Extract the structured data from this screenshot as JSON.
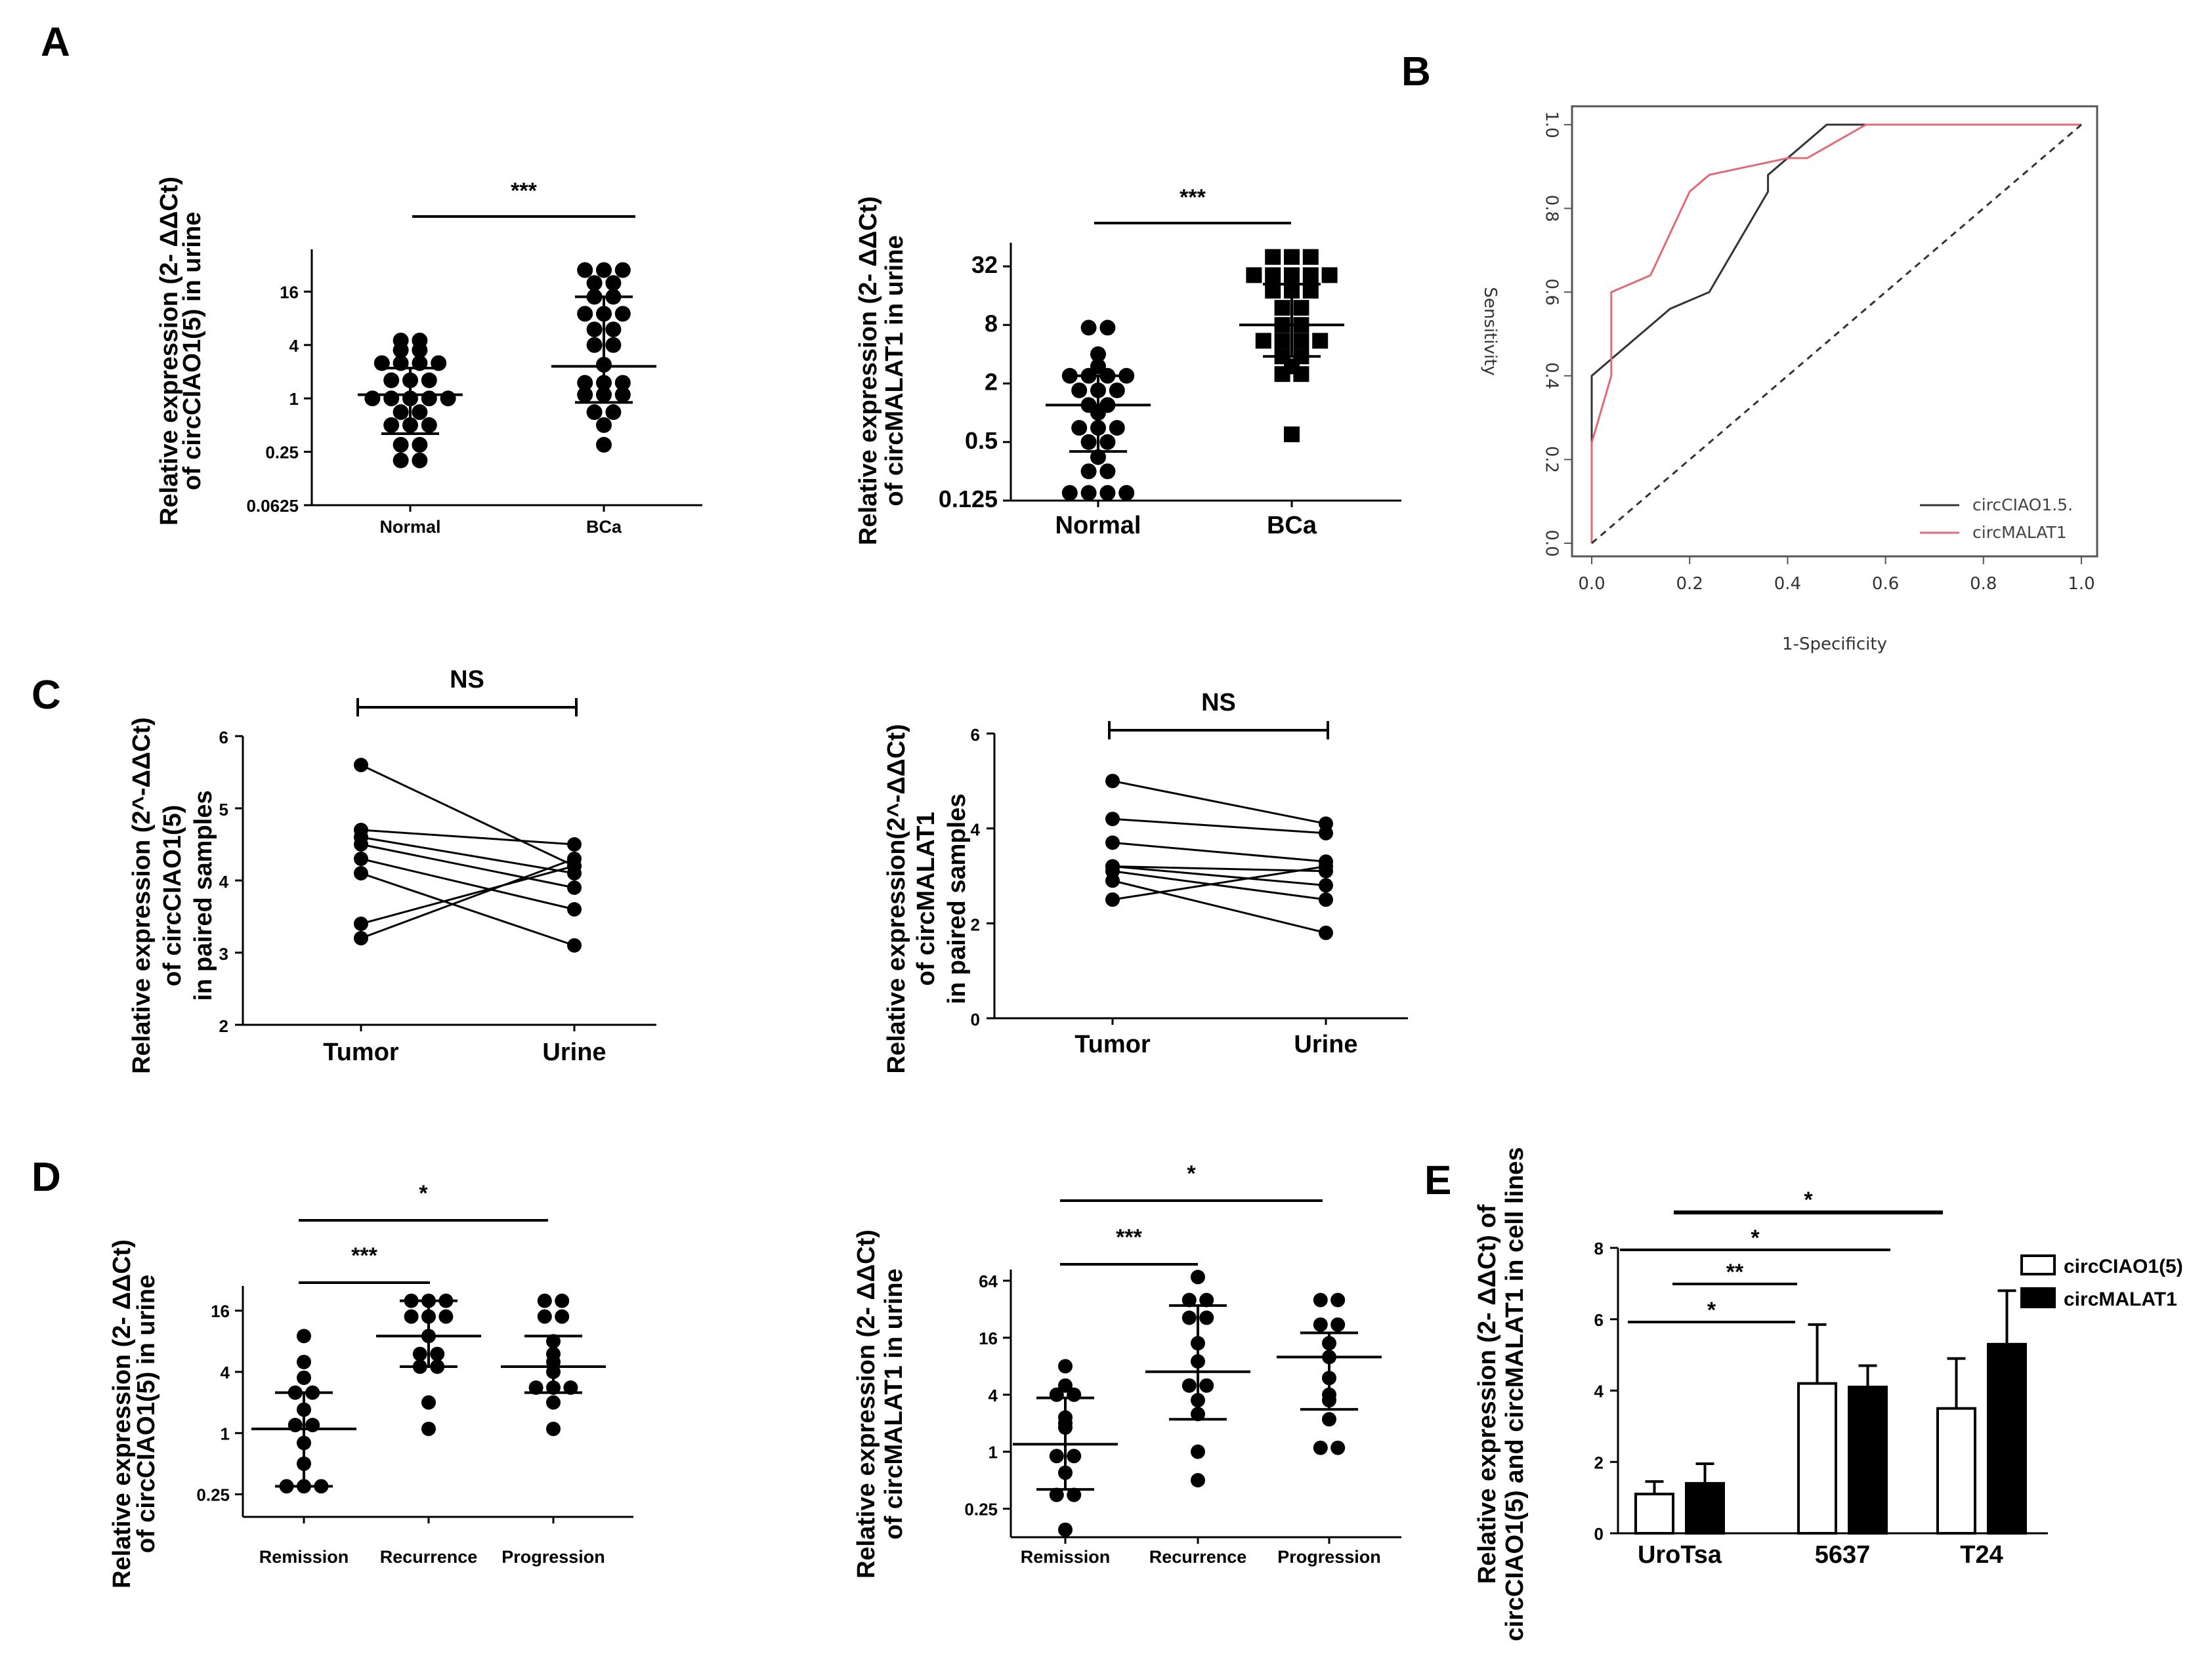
{
  "panels": {
    "A": "A",
    "B": "B",
    "C": "C",
    "D": "D",
    "E": "E"
  },
  "chart_data": [
    {
      "id": "A1",
      "type": "scatter",
      "scale": "log2",
      "ylabel_lines": [
        "Relative expression (2- ΔΔCt)",
        "of circCIAO1(5) in urine"
      ],
      "yticks": [
        0.0625,
        0.25,
        1,
        4,
        16
      ],
      "ytick_labels": [
        "0.0625",
        "0.25",
        "1",
        "4",
        "16"
      ],
      "categories": [
        "Normal",
        "BCa"
      ],
      "groups": [
        {
          "name": "Normal",
          "marker": "circle",
          "mean": 1.1,
          "low": 0.4,
          "high": 2.2,
          "values": [
            4.5,
            4.5,
            3.5,
            3.5,
            2.5,
            2.5,
            2.5,
            2.5,
            1.6,
            1.6,
            1.6,
            1.0,
            1.0,
            1.0,
            1.0,
            1.0,
            0.7,
            0.7,
            0.5,
            0.5,
            0.5,
            0.3,
            0.3,
            0.2,
            0.2
          ]
        },
        {
          "name": "BCa",
          "marker": "circle",
          "mean": 2.3,
          "low": 0.9,
          "high": 14,
          "values": [
            28,
            28,
            28,
            20,
            20,
            14,
            14,
            9,
            9,
            9,
            6,
            6,
            4,
            4,
            2.4,
            1.5,
            1.5,
            1.5,
            1.1,
            1.1,
            1.1,
            0.7,
            0.7,
            0.5,
            0.3
          ]
        }
      ],
      "comparisons": [
        {
          "from": 0,
          "to": 1,
          "label": "***"
        }
      ]
    },
    {
      "id": "A2",
      "type": "scatter",
      "scale": "log2",
      "ylabel_lines": [
        "Relative expression (2-  ΔΔCt)",
        "of circMALAT1 in urine"
      ],
      "yticks": [
        0.125,
        0.5,
        2,
        8,
        32
      ],
      "ytick_labels": [
        "0.125",
        "0.5",
        "2",
        "8",
        "32"
      ],
      "categories": [
        "Normal",
        "BCa"
      ],
      "groups": [
        {
          "name": "Normal",
          "marker": "circle",
          "mean": 1.2,
          "low": 0.4,
          "high": 2.4,
          "values": [
            7.5,
            7.5,
            4.0,
            3.0,
            2.4,
            2.4,
            2.4,
            2.4,
            1.7,
            1.7,
            1.7,
            1.2,
            1.2,
            1.0,
            0.7,
            0.7,
            0.7,
            0.5,
            0.5,
            0.35,
            0.25,
            0.25,
            0.15,
            0.15,
            0.15,
            0.15
          ]
        },
        {
          "name": "BCa",
          "marker": "square",
          "mean": 8.0,
          "low": 3.8,
          "high": 21,
          "values": [
            40,
            40,
            40,
            26,
            26,
            26,
            26,
            26,
            18,
            18,
            18,
            12,
            12,
            8,
            8,
            5.5,
            5.5,
            5.5,
            5.5,
            3.8,
            3.8,
            3.0,
            2.5,
            2.5,
            0.6
          ]
        }
      ],
      "comparisons": [
        {
          "from": 0,
          "to": 1,
          "label": "***"
        }
      ]
    },
    {
      "id": "B",
      "type": "line",
      "xlabel": "1-Specificity",
      "ylabel": "Sensitivity",
      "xlim": [
        0,
        1
      ],
      "ylim": [
        0,
        1
      ],
      "xticks": [
        0.0,
        0.2,
        0.4,
        0.6,
        0.8,
        1.0
      ],
      "xtick_labels": [
        "0.0",
        "0.2",
        "0.4",
        "0.6",
        "0.8",
        "1.0"
      ],
      "yticks": [
        0.0,
        0.2,
        0.4,
        0.6,
        0.8,
        1.0
      ],
      "ytick_labels": [
        "0.0",
        "0.2",
        "0.4",
        "0.6",
        "0.8",
        "1.0"
      ],
      "legend": "bottom-right",
      "series": [
        {
          "name": "circCIAO1.5.",
          "color": "#333333",
          "x": [
            0,
            0,
            0.04,
            0.16,
            0.24,
            0.36,
            0.36,
            0.48,
            1.0
          ],
          "y": [
            0,
            0.4,
            0.44,
            0.56,
            0.6,
            0.84,
            0.88,
            1.0,
            1.0
          ]
        },
        {
          "name": "circMALAT1",
          "color": "#e06a7a",
          "x": [
            0,
            0,
            0.04,
            0.04,
            0.12,
            0.2,
            0.24,
            0.4,
            0.44,
            0.56,
            1.0
          ],
          "y": [
            0,
            0.24,
            0.4,
            0.6,
            0.64,
            0.84,
            0.88,
            0.92,
            0.92,
            1.0,
            1.0
          ]
        },
        {
          "name": "",
          "color": "#333333",
          "dashed": true,
          "x": [
            0,
            1
          ],
          "y": [
            0,
            1
          ]
        }
      ]
    },
    {
      "id": "C1",
      "type": "line",
      "ylabel_lines": [
        "Relative expression (2^-ΔΔCt)",
        "of circCIAO1(5)",
        "in paired samples"
      ],
      "ylim": [
        2,
        6
      ],
      "yticks": [
        2,
        3,
        4,
        5,
        6
      ],
      "ytick_labels": [
        "2",
        "3",
        "4",
        "5",
        "6"
      ],
      "categories": [
        "Tumor",
        "Urine"
      ],
      "pairs": [
        [
          5.6,
          4.2
        ],
        [
          4.7,
          4.5
        ],
        [
          4.6,
          4.1
        ],
        [
          4.5,
          3.9
        ],
        [
          4.3,
          3.6
        ],
        [
          4.1,
          3.1
        ],
        [
          3.4,
          4.2
        ],
        [
          3.2,
          4.3
        ]
      ],
      "comparisons": [
        {
          "from": 0,
          "to": 1,
          "label": "NS"
        }
      ]
    },
    {
      "id": "C2",
      "type": "line",
      "ylabel_lines": [
        "Relative expression(2^-ΔΔCt)",
        "of circMALAT1",
        "in paired samples"
      ],
      "ylim": [
        0,
        6
      ],
      "yticks": [
        0,
        2,
        4,
        6
      ],
      "ytick_labels": [
        "0",
        "2",
        "4",
        "6"
      ],
      "categories": [
        "Tumor",
        "Urine"
      ],
      "pairs": [
        [
          5.0,
          4.1
        ],
        [
          4.2,
          3.9
        ],
        [
          3.7,
          3.3
        ],
        [
          3.2,
          2.8
        ],
        [
          3.2,
          3.1
        ],
        [
          3.1,
          2.5
        ],
        [
          2.9,
          1.8
        ],
        [
          2.5,
          3.2
        ]
      ],
      "comparisons": [
        {
          "from": 0,
          "to": 1,
          "label": "NS"
        }
      ]
    },
    {
      "id": "D1",
      "type": "scatter",
      "scale": "log2",
      "ylabel_lines": [
        "Relative expression (2-  ΔΔCt)",
        "of circCIAO1(5) in urine"
      ],
      "yticks": [
        0.25,
        1,
        4,
        16
      ],
      "ytick_labels": [
        "0.25",
        "1",
        "4",
        "16"
      ],
      "categories": [
        "Remission",
        "Recurrence",
        "Progression"
      ],
      "groups": [
        {
          "name": "Remission",
          "mean": 1.1,
          "low": 0.3,
          "high": 2.5,
          "values": [
            9,
            5,
            3.5,
            2.5,
            2.5,
            1.7,
            1.2,
            1.2,
            0.8,
            0.5,
            0.3,
            0.3,
            0.3
          ]
        },
        {
          "name": "Recurrence",
          "mean": 9,
          "low": 4.5,
          "high": 20,
          "values": [
            20,
            20,
            20,
            14,
            14,
            14,
            9,
            6,
            6,
            4.5,
            4.5,
            2,
            1.1
          ]
        },
        {
          "name": "Progression",
          "mean": 4.5,
          "low": 2.5,
          "high": 9,
          "values": [
            20,
            20,
            14,
            14,
            8,
            6,
            5,
            4,
            2.8,
            2.8,
            2.8,
            2,
            1.1
          ]
        }
      ],
      "comparisons": [
        {
          "from": 0,
          "to": 1,
          "label": "***"
        },
        {
          "from": 0,
          "to": 2,
          "label": "*"
        }
      ]
    },
    {
      "id": "D2",
      "type": "scatter",
      "scale": "log2",
      "ylabel_lines": [
        "Relative expression (2-  ΔΔCt)",
        "of circMALAT1 in urine"
      ],
      "yticks": [
        0.25,
        1,
        4,
        16,
        64
      ],
      "ytick_labels": [
        "0.25",
        "1",
        "4",
        "16",
        "64"
      ],
      "categories": [
        "Remission",
        "Recurrence",
        "Progression"
      ],
      "groups": [
        {
          "name": "Remission",
          "mean": 1.2,
          "low": 0.4,
          "high": 3.7,
          "values": [
            8,
            5,
            4,
            4,
            2.3,
            2,
            1.8,
            0.9,
            0.9,
            0.6,
            0.35,
            0.35,
            0.15
          ]
        },
        {
          "name": "Recurrence",
          "mean": 7,
          "low": 2.2,
          "high": 35,
          "values": [
            70,
            40,
            40,
            26,
            26,
            14,
            9,
            5,
            5,
            3.5,
            2.5,
            1,
            0.5
          ]
        },
        {
          "name": "Progression",
          "mean": 10,
          "low": 2.8,
          "high": 18,
          "values": [
            40,
            40,
            22,
            22,
            14,
            10,
            6,
            4,
            3.5,
            2.2,
            1.1,
            1.1
          ]
        }
      ],
      "comparisons": [
        {
          "from": 0,
          "to": 1,
          "label": "***"
        },
        {
          "from": 0,
          "to": 2,
          "label": "*"
        }
      ]
    },
    {
      "id": "E",
      "type": "bar",
      "ylabel_lines": [
        "Relative expression (2-  ΔΔCt) of",
        "circCIAO1(5) and circMALAT1 in cell lines"
      ],
      "ylim": [
        0,
        8
      ],
      "yticks": [
        0,
        2,
        4,
        6,
        8
      ],
      "ytick_labels": [
        "0",
        "2",
        "4",
        "6",
        "8"
      ],
      "categories": [
        "UroTsa",
        "5637",
        "T24"
      ],
      "legend": "right",
      "series": [
        {
          "name": "circCIAO1(5)",
          "fill": "#ffffff",
          "values": [
            1.1,
            4.2,
            3.5
          ],
          "errors": [
            0.35,
            1.65,
            1.4
          ]
        },
        {
          "name": "circMALAT1",
          "fill": "#000000",
          "values": [
            1.4,
            4.1,
            5.3
          ],
          "errors": [
            0.55,
            0.6,
            1.5
          ]
        }
      ],
      "comparisons": [
        {
          "label": "*",
          "y": 6.0,
          "x1": "UroTsa",
          "x2": "5637-a"
        },
        {
          "label": "**",
          "y": 7.0,
          "x1": "UroTsa-b",
          "x2": "5637-b"
        },
        {
          "label": "*",
          "y": 8.0,
          "x1": "UroTsa",
          "x2": "T24-a"
        },
        {
          "label": "*",
          "y": 9.0,
          "x1": "UroTsa-b",
          "x2": "T24-b"
        }
      ]
    }
  ]
}
